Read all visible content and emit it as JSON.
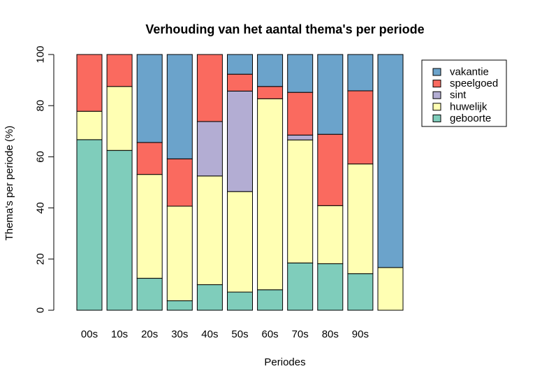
{
  "chart_data": {
    "type": "bar",
    "stacked": true,
    "title": "Verhouding van het aantal thema's per periode",
    "xlabel": "Periodes",
    "ylabel": "Thema's per periode (%)",
    "ylim": [
      0,
      100
    ],
    "yticks": [
      0,
      20,
      40,
      60,
      80,
      100
    ],
    "grid": false,
    "legend_position": "top-right",
    "categories": [
      "00s",
      "10s",
      "20s",
      "30s",
      "40s",
      "50s",
      "60s",
      "70s",
      "80s",
      "90s",
      ""
    ],
    "series": [
      {
        "name": "geboorte",
        "color": "#7FCDBB",
        "values": [
          66.7,
          62.5,
          12.5,
          3.7,
          10.0,
          7.1,
          8.0,
          18.5,
          18.2,
          14.3,
          0
        ]
      },
      {
        "name": "huwelijk",
        "color": "#FFFFB3",
        "values": [
          11.1,
          25.0,
          40.6,
          37.0,
          42.5,
          39.3,
          74.7,
          48.1,
          22.7,
          42.9,
          16.7
        ]
      },
      {
        "name": "sint",
        "color": "#B3ADD3",
        "values": [
          0,
          0,
          0,
          0,
          21.3,
          39.3,
          0,
          1.9,
          0,
          0,
          0
        ]
      },
      {
        "name": "speelgoed",
        "color": "#FA6A5F",
        "values": [
          22.2,
          12.5,
          12.5,
          18.5,
          26.2,
          6.6,
          4.8,
          16.7,
          27.9,
          28.6,
          0
        ]
      },
      {
        "name": "vakantie",
        "color": "#6BA3CB",
        "values": [
          0,
          0,
          34.4,
          40.8,
          0,
          7.7,
          12.5,
          14.8,
          31.2,
          14.2,
          83.3
        ]
      }
    ],
    "legend_order": [
      "vakantie",
      "speelgoed",
      "sint",
      "huwelijk",
      "geboorte"
    ]
  }
}
